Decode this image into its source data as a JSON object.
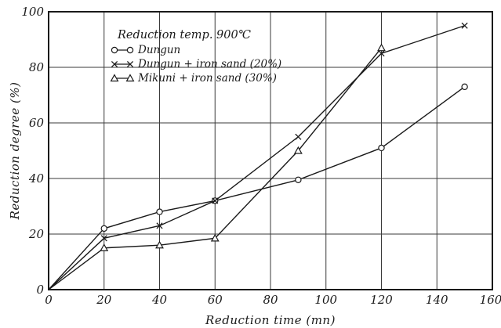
{
  "chart_data": {
    "type": "line",
    "title": "",
    "xlabel": "Reduction   time   (mn)",
    "ylabel": "Reduction  degree   (%)",
    "xlim": [
      0,
      160
    ],
    "ylim": [
      0,
      100
    ],
    "xticks": [
      0,
      20,
      40,
      60,
      80,
      100,
      120,
      140,
      160
    ],
    "yticks": [
      0,
      20,
      40,
      60,
      80,
      100
    ],
    "grid": true,
    "legend": {
      "placement": "top-left",
      "title": "Reduction temp. 900℃"
    },
    "series": [
      {
        "name": "Dungun",
        "marker": "circle",
        "x": [
          0,
          20,
          40,
          60,
          90,
          120,
          150
        ],
        "y": [
          0,
          22,
          28,
          32,
          39.5,
          51,
          73
        ]
      },
      {
        "name": "Dungun + iron  sand (20%)",
        "marker": "x",
        "x": [
          0,
          20,
          40,
          60,
          90,
          120,
          150
        ],
        "y": [
          0,
          18.5,
          23,
          32,
          55,
          85,
          95
        ]
      },
      {
        "name": "Mikuni + iron  sand (30%)",
        "marker": "triangle",
        "x": [
          0,
          20,
          40,
          60,
          90,
          120
        ],
        "y": [
          0,
          15,
          16,
          18.5,
          50,
          87
        ]
      }
    ]
  }
}
